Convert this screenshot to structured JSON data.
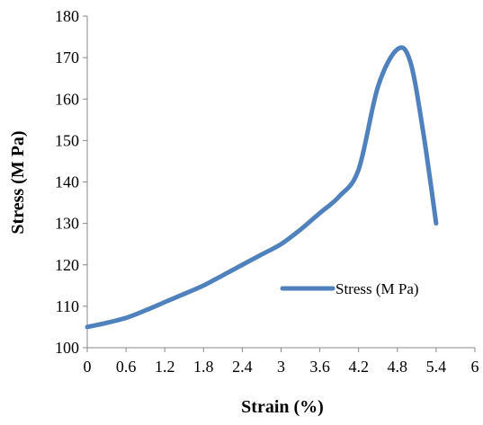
{
  "chart_data": {
    "type": "line",
    "xlabel": "Strain (%)",
    "ylabel": "Stress (M Pa)",
    "xlim": [
      0,
      6
    ],
    "ylim": [
      100,
      180
    ],
    "x_ticks": [
      "0",
      "0.6",
      "1.2",
      "1.8",
      "2.4",
      "3",
      "3.6",
      "4.2",
      "4.8",
      "5.4",
      "6"
    ],
    "y_ticks": [
      "100",
      "110",
      "120",
      "130",
      "140",
      "150",
      "160",
      "170",
      "180"
    ],
    "grid": false,
    "legend_position": "right",
    "series": [
      {
        "name": "Stress  (M Pa)",
        "color": "#4F81BD",
        "x": [
          0,
          0.3,
          0.6,
          0.9,
          1.2,
          1.5,
          1.8,
          2.1,
          2.4,
          2.7,
          3.0,
          3.3,
          3.6,
          3.9,
          4.2,
          4.5,
          4.8,
          5.0,
          5.2,
          5.4
        ],
        "y": [
          105,
          106,
          107.2,
          109,
          111,
          113,
          115,
          117.5,
          120,
          122.5,
          125,
          128.5,
          132.5,
          136.5,
          143,
          163,
          172,
          169,
          152,
          130
        ]
      }
    ]
  }
}
